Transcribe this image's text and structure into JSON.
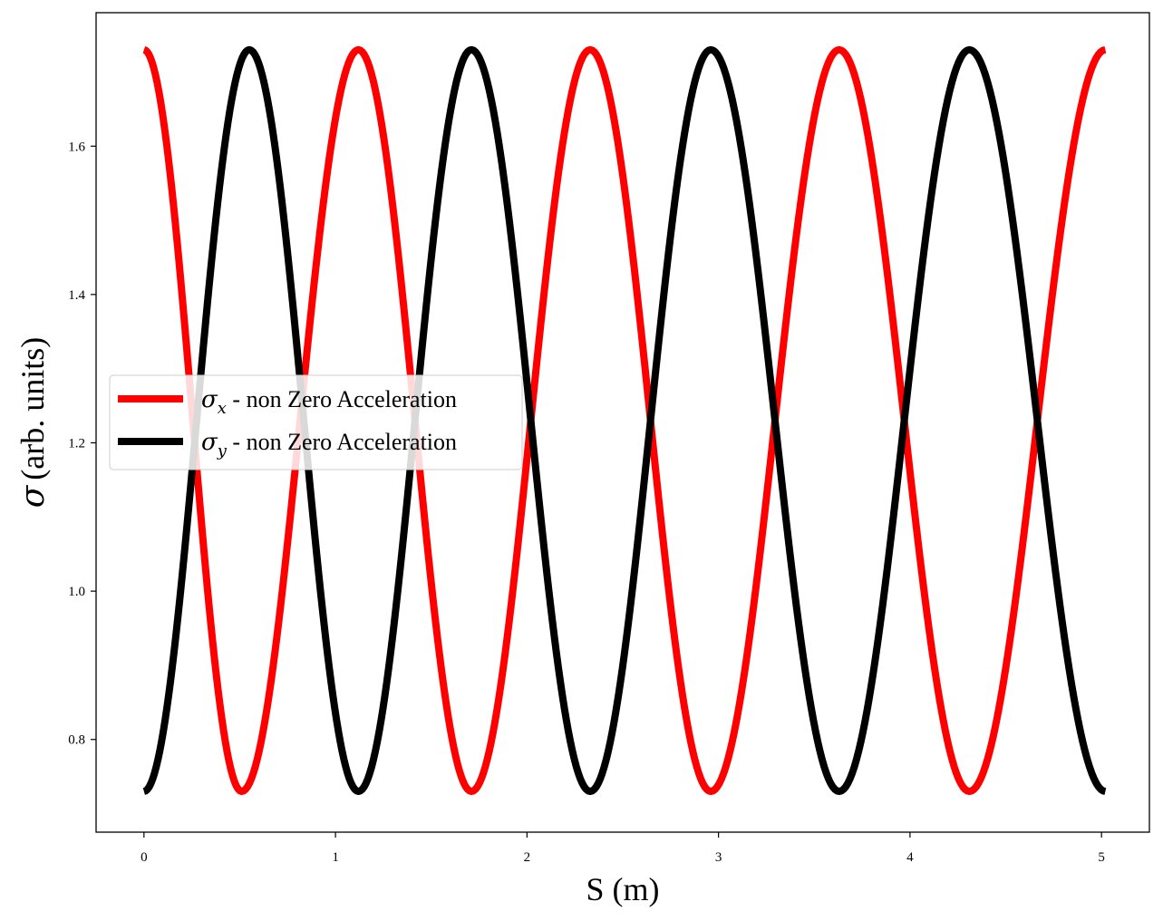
{
  "chart_data": {
    "type": "line",
    "xlabel": "S (m)",
    "ylabel": "(arb. units)",
    "ylabel_symbol": "σ",
    "xlim": [
      -0.25,
      5.25
    ],
    "ylim": [
      0.675,
      1.78
    ],
    "xticks": [
      0,
      1,
      2,
      3,
      4,
      5
    ],
    "yticks": [
      0.8,
      1.0,
      1.2,
      1.4,
      1.6
    ],
    "xtick_labels": [
      "0",
      "1",
      "2",
      "3",
      "4",
      "5"
    ],
    "ytick_labels": [
      "0.8",
      "1.0",
      "1.2",
      "1.4",
      "1.6"
    ],
    "grid": false,
    "legend_position": "center-left",
    "series": [
      {
        "name": "σx - non Zero Acceleration",
        "symbol": "σ",
        "subscript": "x",
        "suffix": " - non Zero Acceleration",
        "color": "#ff0000",
        "x": [
          0.0,
          1.12,
          2.33,
          3.63,
          5.02
        ],
        "values": [
          1.73,
          1.73,
          1.73,
          1.73,
          1.73
        ],
        "min_x": [
          0.51,
          1.71,
          2.96,
          4.31
        ],
        "min_values": [
          0.73,
          0.73,
          0.73,
          0.73
        ],
        "x_range": [
          0.0,
          5.02
        ]
      },
      {
        "name": "σy - non Zero Acceleration",
        "symbol": "σ",
        "subscript": "y",
        "suffix": " - non Zero Acceleration",
        "color": "#000000",
        "x": [
          0.55,
          1.71,
          2.96,
          4.31
        ],
        "values": [
          1.73,
          1.73,
          1.73,
          1.73
        ],
        "min_x": [
          0.0,
          1.12,
          2.33,
          3.63,
          5.02
        ],
        "min_values": [
          0.73,
          0.73,
          0.73,
          0.73,
          0.73
        ],
        "x_range": [
          0.0,
          5.02
        ]
      }
    ]
  }
}
